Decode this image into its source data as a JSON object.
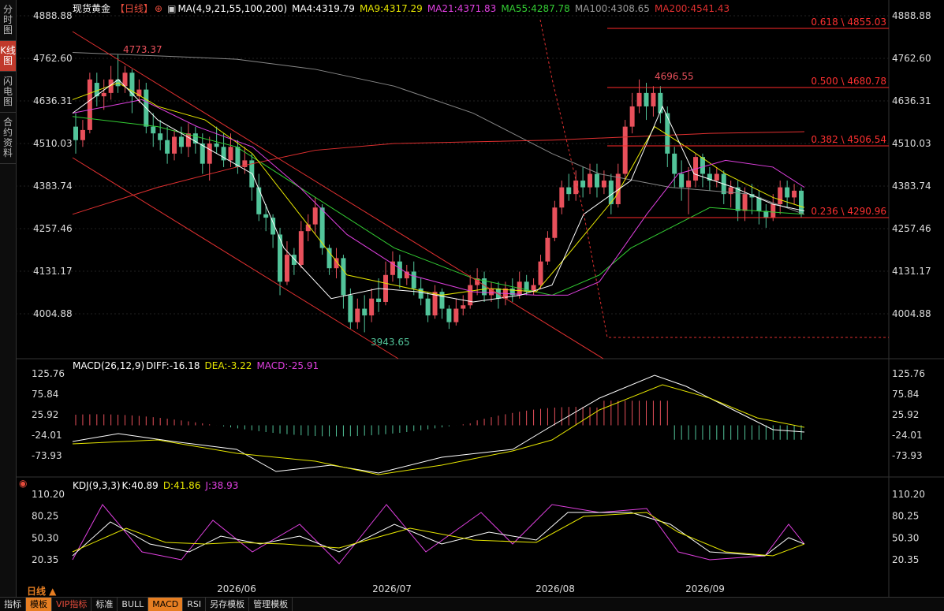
{
  "sidebar": [
    {
      "label": "分时图",
      "active": false
    },
    {
      "label": "K线图",
      "active": true
    },
    {
      "label": "闪电图",
      "active": false
    },
    {
      "label": "合约资料",
      "active": false
    }
  ],
  "header": {
    "instrument": "现货黄金",
    "period": "【日线】",
    "ma_params": "MA(4,9,21,55,100,200)",
    "ma4": "MA4:4319.79",
    "ma9": "MA9:4317.29",
    "ma21": "MA21:4371.83",
    "ma55": "MA55:4287.78",
    "ma100": "MA100:4308.65",
    "ma200": "MA200:4541.43"
  },
  "colors": {
    "up": "#e8505b",
    "down": "#52c49a",
    "ma4": "#ffffff",
    "ma9": "#e6e600",
    "ma21": "#e040e0",
    "ma55": "#33cc33",
    "ma100": "#888888",
    "ma200": "#e03030",
    "fib": "#ff2a2a"
  },
  "price_axis": [
    "4888.88",
    "4762.60",
    "4636.31",
    "4510.03",
    "4383.74",
    "4257.46",
    "4131.17",
    "4004.88"
  ],
  "annotations": {
    "high_left": "4773.37",
    "high_right": "4696.55",
    "low": "3943.65"
  },
  "fib_labels": [
    "0.618 \\ 4855.03",
    "0.500 \\ 4680.78",
    "0.382 \\ 4506.54",
    "0.236 \\ 4290.96"
  ],
  "macd": {
    "title": "MACD(26,12,9)",
    "diff": "DIFF:-16.18",
    "dea": "DEA:-3.22",
    "macd": "MACD:-25.91",
    "axis": [
      "125.76",
      "75.84",
      "25.92",
      "-24.01",
      "-73.93"
    ]
  },
  "kdj": {
    "title": "KDJ(9,3,3)",
    "k": "K:40.89",
    "d": "D:41.86",
    "j": "J:38.93",
    "axis": [
      "110.20",
      "80.25",
      "50.30",
      "20.35"
    ]
  },
  "dates": [
    "2026/06",
    "2026/07",
    "2026/08",
    "2026/09"
  ],
  "period_label": "日线 ▲",
  "bottom_tabs": [
    {
      "label": "指标",
      "style": ""
    },
    {
      "label": "模板",
      "style": "active"
    },
    {
      "label": "VIP指标",
      "style": "vip"
    },
    {
      "label": "标准",
      "style": ""
    },
    {
      "label": "BULL",
      "style": ""
    },
    {
      "label": "MACD",
      "style": "active"
    },
    {
      "label": "RSI",
      "style": ""
    },
    {
      "label": "另存模板",
      "style": ""
    },
    {
      "label": "管理模板",
      "style": ""
    }
  ]
}
